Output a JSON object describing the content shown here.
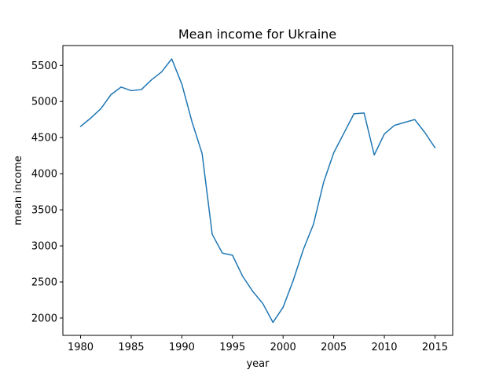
{
  "chart_data": {
    "type": "line",
    "title": "Mean income for Ukraine",
    "xlabel": "year",
    "ylabel": "mean income",
    "xlim": [
      1978.25,
      2016.75
    ],
    "ylim": [
      1760,
      5775
    ],
    "x_ticks": [
      1980,
      1985,
      1990,
      1995,
      2000,
      2005,
      2010,
      2015
    ],
    "y_ticks": [
      2000,
      2500,
      3000,
      3500,
      4000,
      4500,
      5000,
      5500
    ],
    "grid": false,
    "colors": {
      "line": "#1f77b4"
    },
    "series": [
      {
        "x": [
          1980,
          1981,
          1982,
          1983,
          1984,
          1985,
          1986,
          1987,
          1988,
          1989,
          1990,
          1991,
          1992,
          1993,
          1994,
          1995,
          1996,
          1997,
          1998,
          1999,
          2000,
          2001,
          2002,
          2003,
          2004,
          2005,
          2006,
          2007,
          2008,
          2009,
          2010,
          2011,
          2012,
          2013,
          2014,
          2015
        ],
        "values": [
          4655,
          4770,
          4900,
          5095,
          5200,
          5150,
          5165,
          5300,
          5410,
          5590,
          5240,
          4720,
          4280,
          3160,
          2900,
          2870,
          2580,
          2370,
          2200,
          1940,
          2150,
          2520,
          2950,
          3300,
          3880,
          4290,
          4560,
          4830,
          4840,
          4260,
          4550,
          4670,
          4710,
          4750,
          4570,
          4360
        ]
      }
    ]
  }
}
